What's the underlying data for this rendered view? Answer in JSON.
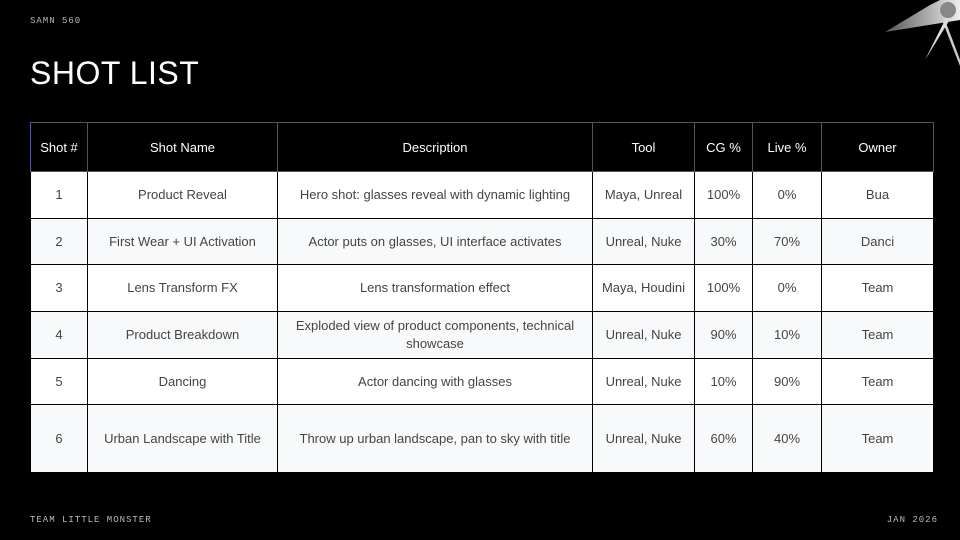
{
  "header": {
    "code": "SAMN 560",
    "title": "SHOT LIST"
  },
  "footer": {
    "team": "TEAM LITTLE MONSTER",
    "date": "JAN 2026"
  },
  "table": {
    "columns": [
      "Shot #",
      "Shot Name",
      "Description",
      "Tool",
      "CG %",
      "Live %",
      "Owner"
    ],
    "rows": [
      [
        "1",
        "Product Reveal",
        "Hero shot: glasses reveal with dynamic lighting",
        "Maya, Unreal",
        "100%",
        "0%",
        "Bua"
      ],
      [
        "2",
        "First Wear + UI Activation",
        "Actor puts on glasses, UI interface activates",
        "Unreal, Nuke",
        "30%",
        "70%",
        "Danci"
      ],
      [
        "3",
        "Lens Transform FX",
        "Lens transformation effect",
        "Maya, Houdini",
        "100%",
        "0%",
        "Team"
      ],
      [
        "4",
        "Product Breakdown",
        "Exploded view of product components, technical showcase",
        "Unreal, Nuke",
        "90%",
        "10%",
        "Team"
      ],
      [
        "5",
        "Dancing",
        "Actor dancing with glasses",
        "Unreal, Nuke",
        "10%",
        "90%",
        "Team"
      ],
      [
        "6",
        "Urban Landscape with Title",
        "Throw up urban landscape, pan to sky with title",
        "Unreal, Nuke",
        "60%",
        "40%",
        "Team"
      ]
    ]
  }
}
